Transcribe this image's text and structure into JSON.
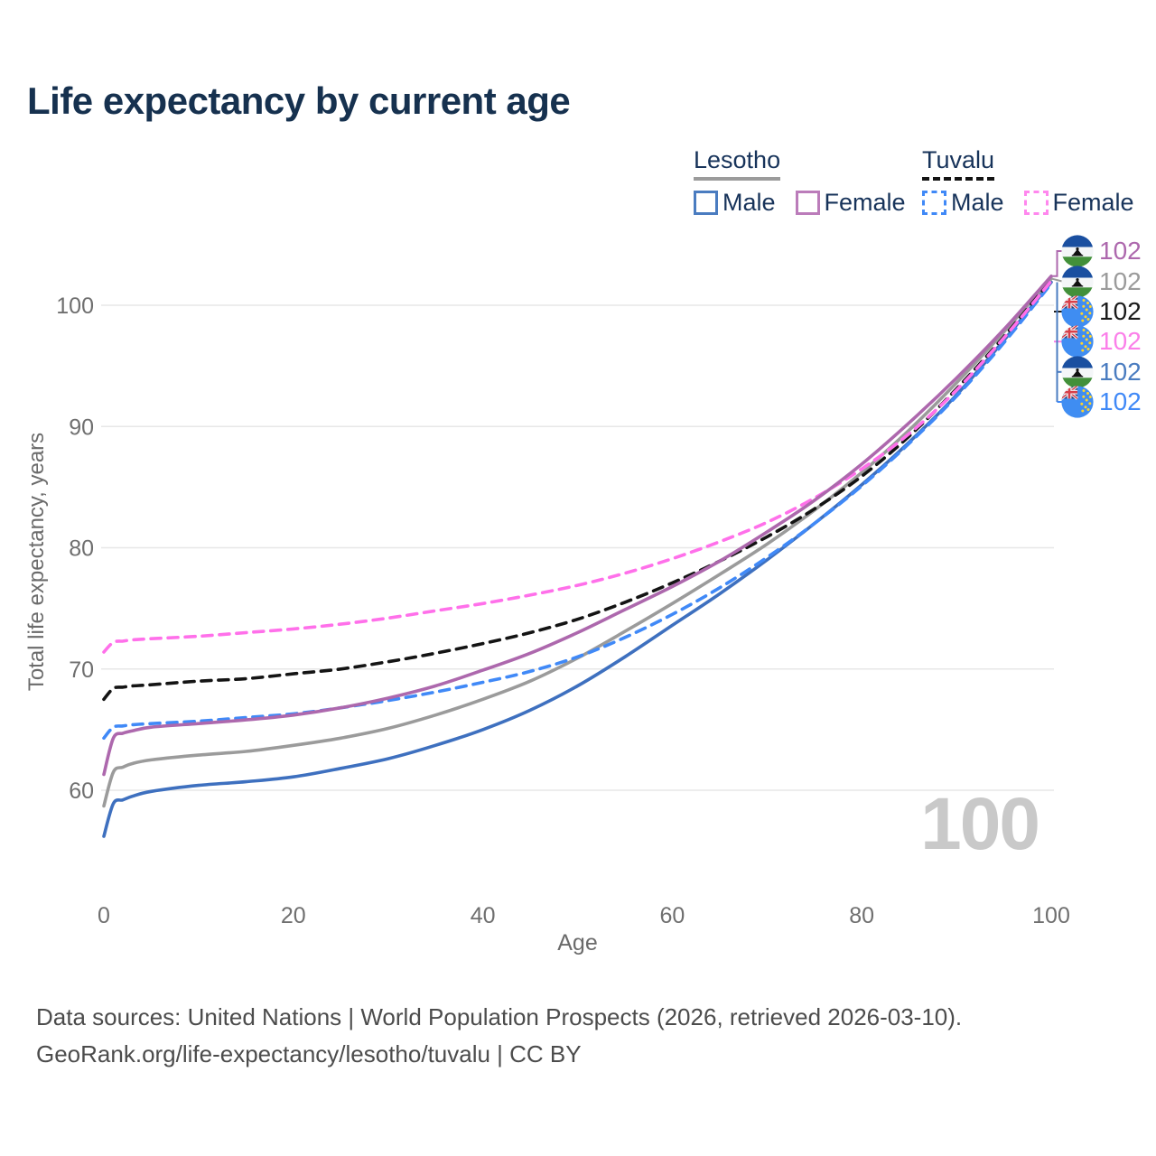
{
  "title": "Life expectancy by current age",
  "legend": {
    "groups": [
      {
        "country": "Lesotho",
        "underline": "solid-gray",
        "items": [
          {
            "label": "Male",
            "style": "solid",
            "color": "#4a7cc0"
          },
          {
            "label": "Female",
            "style": "solid",
            "color": "#bb7cba"
          }
        ]
      },
      {
        "country": "Tuvalu",
        "underline": "dashed-black",
        "items": [
          {
            "label": "Male",
            "style": "dashed",
            "color": "#4089f7"
          },
          {
            "label": "Female",
            "style": "dashed",
            "color": "#ff87ee"
          }
        ]
      }
    ]
  },
  "chart_data": {
    "type": "line",
    "title": "Life expectancy by current age",
    "xlabel": "Age",
    "ylabel": "Total life expectancy, years",
    "xlim": [
      0,
      100
    ],
    "ylim": [
      60,
      100
    ],
    "x_ticks": [
      0,
      20,
      40,
      60,
      80,
      100
    ],
    "y_ticks": [
      60,
      70,
      80,
      90,
      100
    ],
    "grid": "horizontal",
    "legend_position": "top-right",
    "x": [
      0,
      1,
      2,
      3,
      5,
      10,
      15,
      20,
      25,
      30,
      35,
      40,
      45,
      50,
      55,
      60,
      65,
      70,
      75,
      80,
      85,
      90,
      95,
      100
    ],
    "series": [
      {
        "id": "lesotho-male",
        "name": "Lesotho Male",
        "color": "#3e70bf",
        "dash": false,
        "values": [
          56.2,
          58.9,
          59.2,
          59.5,
          59.9,
          60.4,
          60.7,
          61.1,
          61.8,
          62.6,
          63.7,
          65.0,
          66.6,
          68.6,
          71.0,
          73.6,
          76.2,
          79.0,
          82.0,
          85.2,
          88.7,
          92.6,
          97.1,
          101.9
        ]
      },
      {
        "id": "lesotho-both",
        "name": "Lesotho Both sexes",
        "color": "#9b9b9b",
        "dash": false,
        "values": [
          58.7,
          61.5,
          61.9,
          62.2,
          62.5,
          62.9,
          63.2,
          63.7,
          64.3,
          65.1,
          66.2,
          67.5,
          69.0,
          70.9,
          73.1,
          75.4,
          77.8,
          80.3,
          83.1,
          86.2,
          89.7,
          93.6,
          97.8,
          102.2
        ]
      },
      {
        "id": "tuvalu-male",
        "name": "Tuvalu Male",
        "color": "#4089f7",
        "dash": true,
        "values": [
          64.3,
          65.2,
          65.3,
          65.4,
          65.5,
          65.7,
          66.0,
          66.3,
          66.8,
          67.4,
          68.1,
          68.9,
          69.8,
          71.0,
          72.6,
          74.5,
          76.7,
          79.2,
          82.0,
          85.1,
          88.6,
          92.5,
          96.9,
          101.8
        ]
      },
      {
        "id": "tuvalu-both",
        "name": "Tuvalu Both sexes",
        "color": "#141414",
        "dash": true,
        "values": [
          67.5,
          68.4,
          68.5,
          68.6,
          68.7,
          69.0,
          69.2,
          69.6,
          70.0,
          70.6,
          71.3,
          72.1,
          73.0,
          74.1,
          75.5,
          77.1,
          78.9,
          80.9,
          83.2,
          85.9,
          89.2,
          93.1,
          97.4,
          102.1
        ]
      },
      {
        "id": "tuvalu-female",
        "name": "Tuvalu Female",
        "color": "#ff70ea",
        "dash": true,
        "values": [
          71.4,
          72.2,
          72.3,
          72.4,
          72.5,
          72.7,
          73.0,
          73.3,
          73.7,
          74.2,
          74.8,
          75.4,
          76.1,
          76.9,
          77.9,
          79.1,
          80.5,
          82.1,
          84.1,
          86.5,
          89.4,
          93.0,
          97.3,
          102.0
        ]
      },
      {
        "id": "lesotho-female",
        "name": "Lesotho Female",
        "color": "#ad68ad",
        "dash": false,
        "values": [
          61.3,
          64.3,
          64.7,
          64.9,
          65.2,
          65.5,
          65.8,
          66.2,
          66.8,
          67.6,
          68.6,
          69.9,
          71.3,
          73.0,
          74.9,
          76.8,
          78.9,
          81.3,
          83.9,
          86.9,
          90.3,
          94.0,
          98.0,
          102.4
        ]
      }
    ],
    "end_labels": [
      {
        "id": "lesotho-female",
        "value": "102",
        "flag": "lesotho",
        "color": "#ad68ad"
      },
      {
        "id": "lesotho-both",
        "value": "102",
        "flag": "lesotho",
        "color": "#9b9b9b"
      },
      {
        "id": "tuvalu-both",
        "value": "102",
        "flag": "tuvalu",
        "color": "#1a1a1a"
      },
      {
        "id": "tuvalu-female",
        "value": "102",
        "flag": "tuvalu",
        "color": "#fb7fe9"
      },
      {
        "id": "lesotho-male",
        "value": "102",
        "flag": "lesotho",
        "color": "#4a7cc0"
      },
      {
        "id": "tuvalu-male",
        "value": "102",
        "flag": "tuvalu",
        "color": "#4089f7"
      }
    ]
  },
  "watermark": "100",
  "footer": {
    "line1": "Data sources: United Nations | World Population Prospects (2026, retrieved 2026-03-10).",
    "line2": "GeoRank.org/life-expectancy/lesotho/tuvalu | CC BY"
  }
}
